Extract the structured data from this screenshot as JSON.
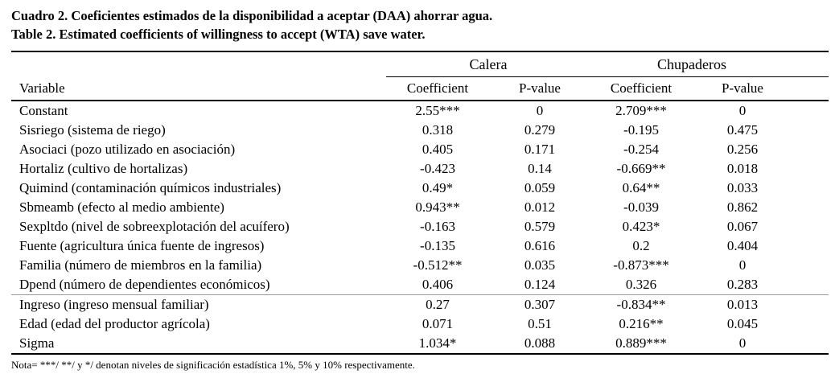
{
  "titles": {
    "spanish": "Cuadro 2. Coeficientes estimados de la disponibilidad a aceptar (DAA) ahorrar agua.",
    "english": "Table 2. Estimated coefficients of willingness to accept (WTA) save water."
  },
  "table": {
    "group_headers": [
      {
        "label": "Calera"
      },
      {
        "label": "Chupaderos"
      }
    ],
    "col_headers": [
      "Variable",
      "Coefficient",
      "P-value",
      "Coefficient",
      "P-value"
    ],
    "rows": [
      {
        "variable": "Constant",
        "values": [
          "2.55***",
          "0",
          "2.709***",
          "0"
        ]
      },
      {
        "variable": "Sisriego (sistema de riego)",
        "values": [
          "0.318",
          "0.279",
          "-0.195",
          "0.475"
        ]
      },
      {
        "variable": "Asociaci (pozo utilizado en asociación)",
        "values": [
          "0.405",
          "0.171",
          "-0.254",
          "0.256"
        ]
      },
      {
        "variable": "Hortaliz (cultivo de hortalizas)",
        "values": [
          "-0.423",
          "0.14",
          "-0.669**",
          "0.018"
        ]
      },
      {
        "variable": "Quimind (contaminación químicos industriales)",
        "values": [
          "0.49*",
          "0.059",
          "0.64**",
          "0.033"
        ]
      },
      {
        "variable": "Sbmeamb (efecto al medio ambiente)",
        "values": [
          "0.943**",
          "0.012",
          "-0.039",
          "0.862"
        ]
      },
      {
        "variable": "Sexpltdo (nivel de sobreexplotación del acuífero)",
        "values": [
          "-0.163",
          "0.579",
          "0.423*",
          "0.067"
        ]
      },
      {
        "variable": "Fuente (agricultura única fuente de ingresos)",
        "values": [
          "-0.135",
          "0.616",
          "0.2",
          "0.404"
        ]
      },
      {
        "variable": "Familia (número de miembros en la familia)",
        "values": [
          "-0.512**",
          "0.035",
          "-0.873***",
          "0"
        ]
      },
      {
        "variable": "Dpend (número de dependientes económicos)",
        "values": [
          "0.406",
          "0.124",
          "0.326",
          "0.283"
        ]
      },
      {
        "variable": "Ingreso (ingreso mensual familiar)",
        "values": [
          "0.27",
          "0.307",
          "-0.834**",
          "0.013"
        ]
      },
      {
        "variable": "Edad (edad del productor agrícola)",
        "values": [
          "0.071",
          "0.51",
          "0.216**",
          "0.045"
        ]
      },
      {
        "variable": "Sigma",
        "values": [
          "1.034*",
          "0.088",
          "0.889***",
          "0"
        ]
      }
    ],
    "note": "Nota= ***/ **/ y */ denotan niveles de significación estadística 1%, 5% y 10% respectivamente."
  }
}
